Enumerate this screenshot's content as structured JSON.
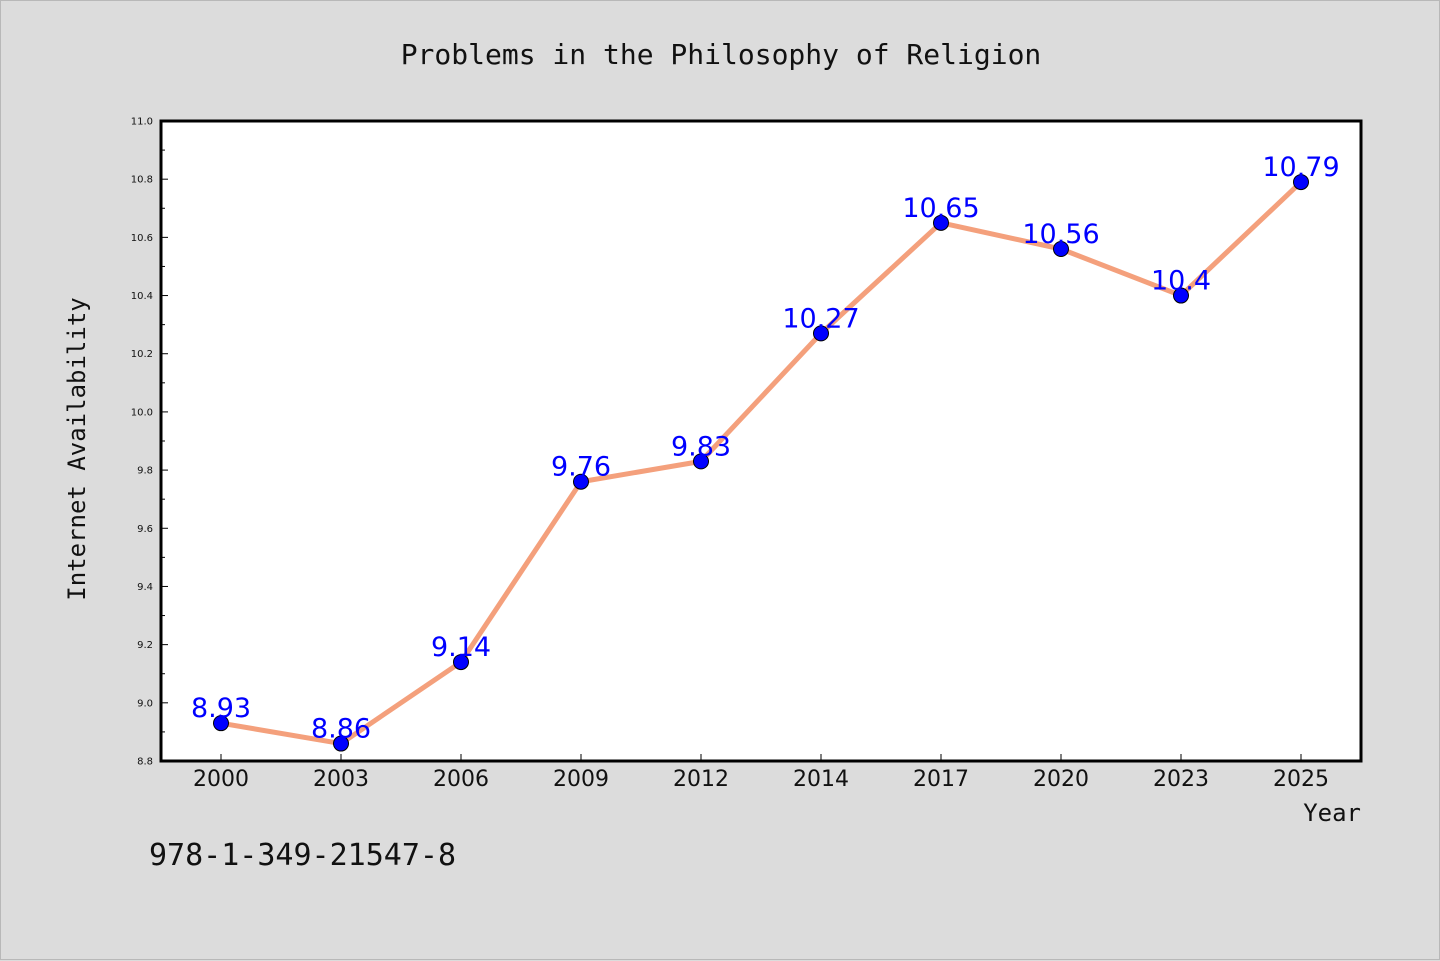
{
  "footer_text": "978-1-349-21547-8",
  "chart_data": {
    "type": "line",
    "title": "Problems in the Philosophy of Religion",
    "xlabel": "Year",
    "ylabel": "Internet Availability",
    "categories": [
      "2000",
      "2003",
      "2006",
      "2009",
      "2012",
      "2014",
      "2017",
      "2020",
      "2023",
      "2025"
    ],
    "values": [
      8.93,
      8.86,
      9.14,
      9.76,
      9.83,
      10.27,
      10.65,
      10.56,
      10.4,
      10.79
    ],
    "data_labels": [
      "8.93",
      "8.86",
      "9.14",
      "9.76",
      "9.83",
      "10.27",
      "10.65",
      "10.56",
      "10.4",
      "10.79"
    ],
    "ylim": [
      8.8,
      11.0
    ],
    "yticks": [
      "8.8",
      "9.0",
      "9.2",
      "9.4",
      "9.6",
      "9.8",
      "10.0",
      "10.2",
      "10.4",
      "10.6",
      "10.8",
      "11.0"
    ],
    "grid": false,
    "colors": {
      "line": "#f4a07c",
      "marker": "#0000ff",
      "data_label": "#0000ff",
      "plot_background": "#ffffff",
      "figure_background": "#dcdcdc"
    }
  }
}
